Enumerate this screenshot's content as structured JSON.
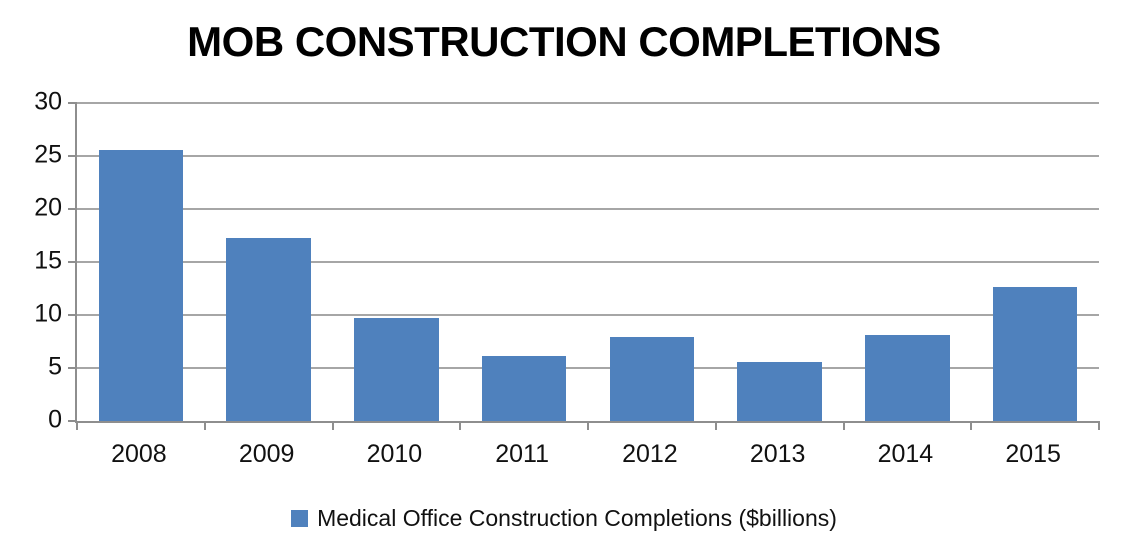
{
  "chart_data": {
    "type": "bar",
    "title": "MOB CONSTRUCTION COMPLETIONS",
    "categories": [
      "2008",
      "2009",
      "2010",
      "2011",
      "2012",
      "2013",
      "2014",
      "2015"
    ],
    "values": [
      25.6,
      17.3,
      9.7,
      6.1,
      7.9,
      5.6,
      8.1,
      12.6
    ],
    "series_name": "Medical Office Construction Completions ($billions)",
    "xlabel": "",
    "ylabel": "",
    "ylim": [
      0,
      30
    ],
    "y_ticks": [
      0,
      5,
      10,
      15,
      20,
      25,
      30
    ],
    "grid": true,
    "legend_position": "bottom",
    "bar_color": "#4F81BD",
    "gridline_color": "#A6A6A6",
    "axis_color": "#8E8E8E"
  }
}
